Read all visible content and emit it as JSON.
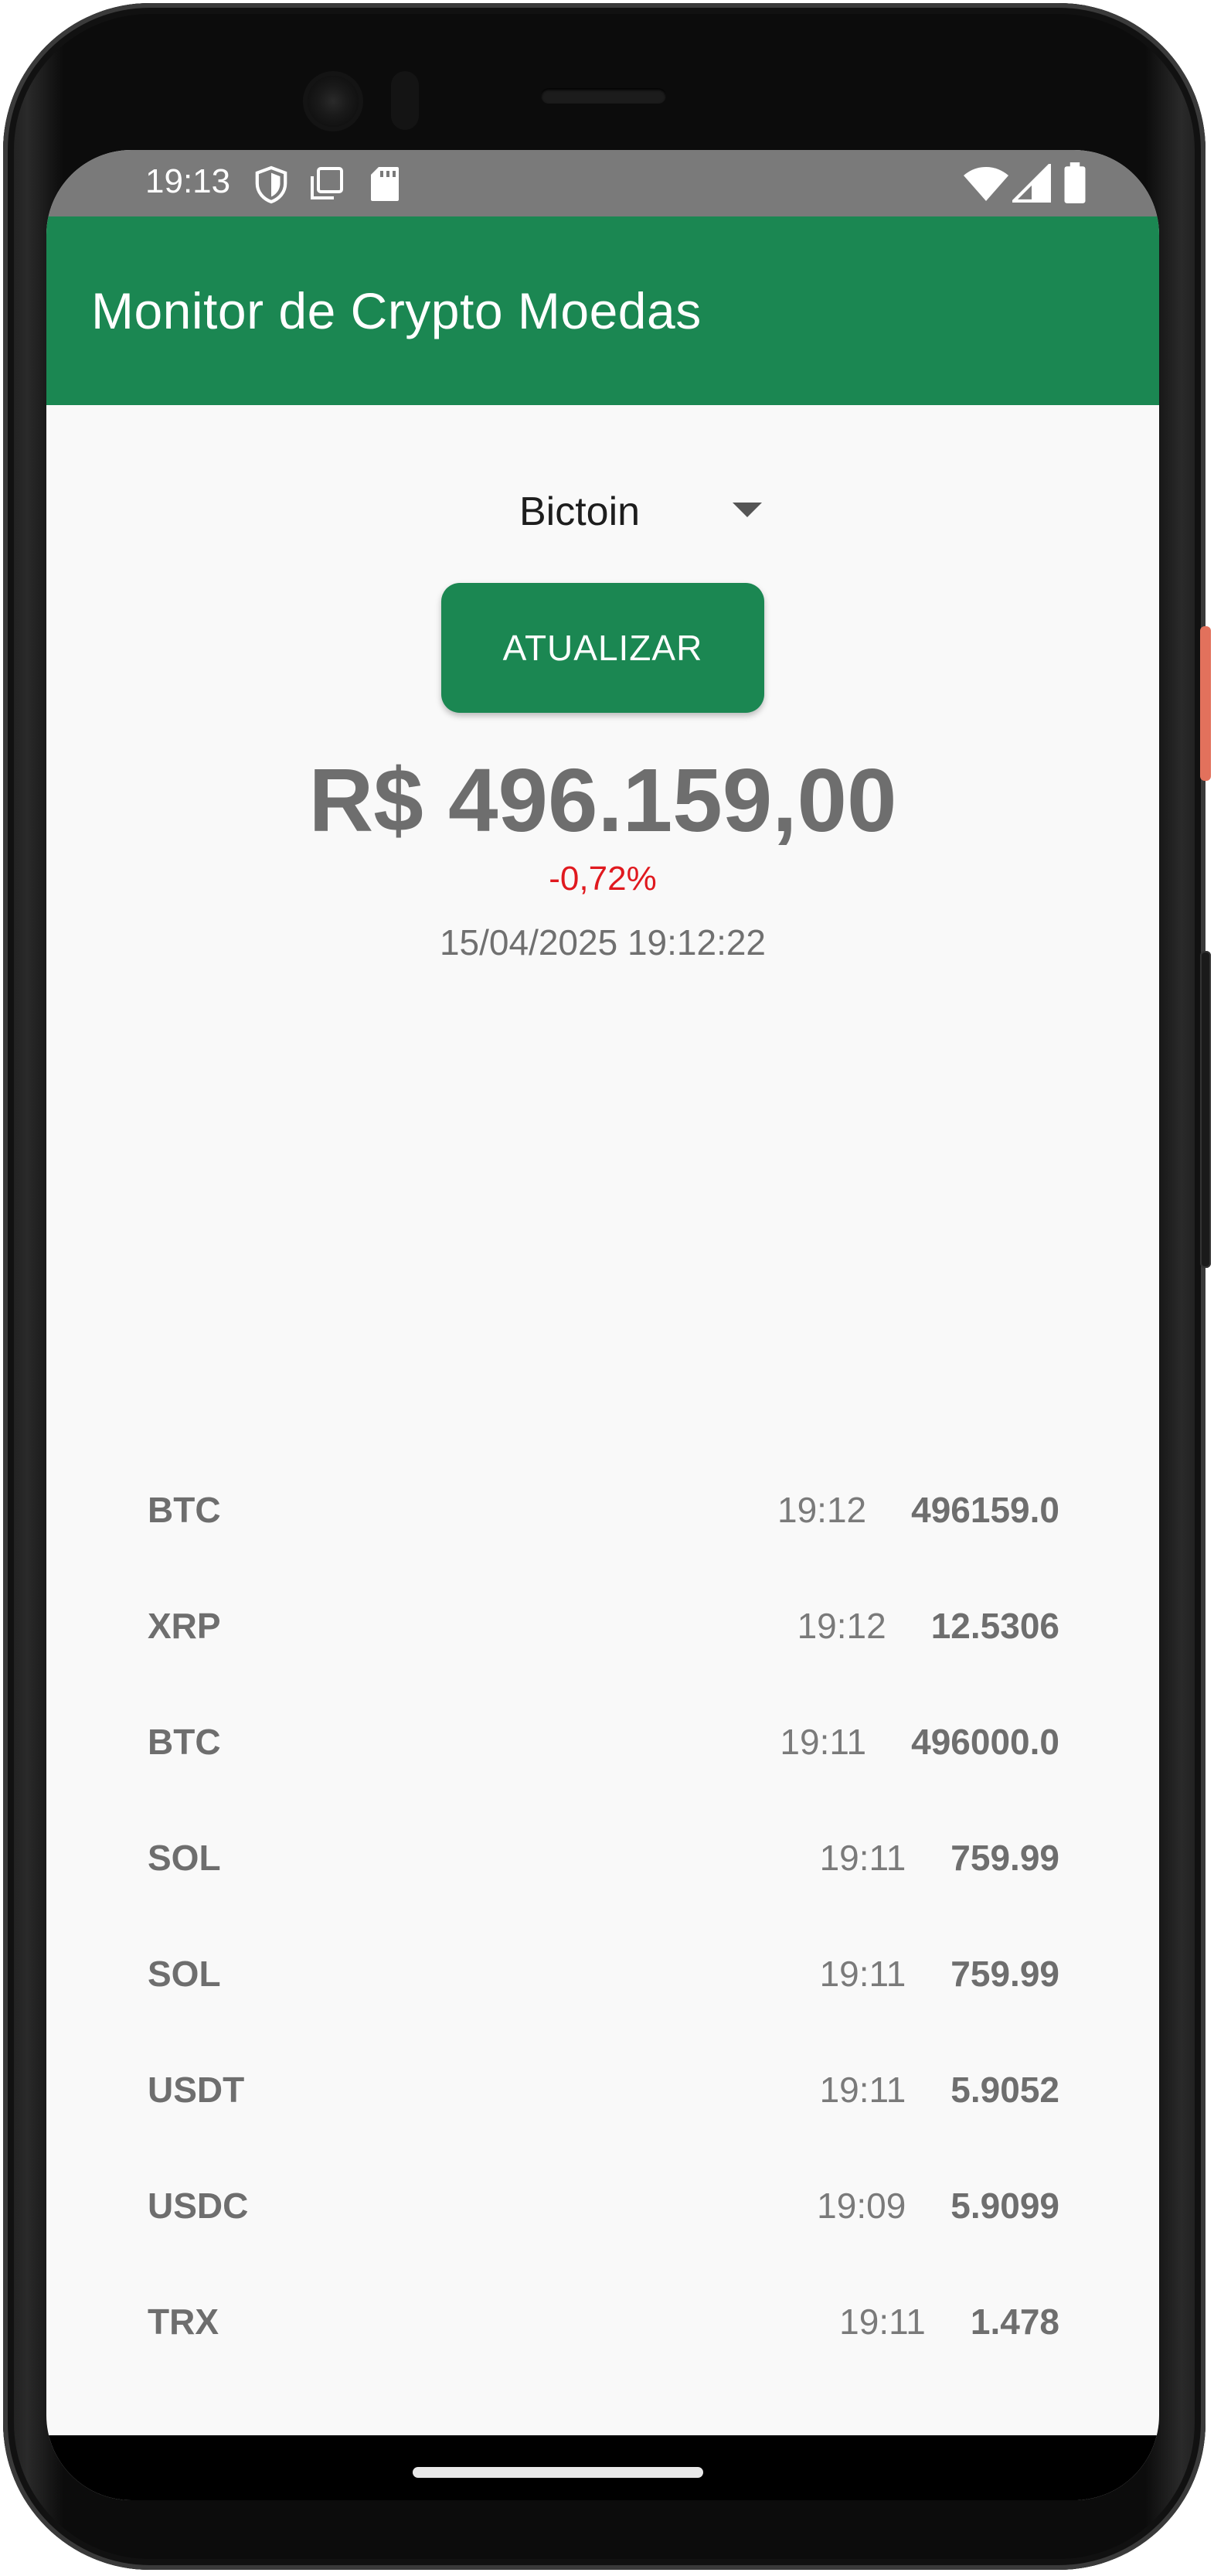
{
  "status_bar": {
    "time": "19:13",
    "left_icons": [
      "shield-icon",
      "screenshot-icon",
      "sd-card-icon"
    ],
    "right_icons": [
      "wifi-icon",
      "cellular-signal-icon",
      "battery-icon"
    ]
  },
  "app_bar": {
    "title": "Monitor de Crypto Moedas",
    "color": "#1b8752"
  },
  "selector": {
    "selected": "Bictoin"
  },
  "update_button": {
    "label": "ATUALIZAR"
  },
  "quote": {
    "price": "R$ 496.159,00",
    "change": "-0,72%",
    "change_color": "#e0191f",
    "timestamp": "15/04/2025 19:12:22"
  },
  "history": [
    {
      "symbol": "BTC",
      "time": "19:12",
      "value": "496159.0"
    },
    {
      "symbol": "XRP",
      "time": "19:12",
      "value": "12.5306"
    },
    {
      "symbol": "BTC",
      "time": "19:11",
      "value": "496000.0"
    },
    {
      "symbol": "SOL",
      "time": "19:11",
      "value": "759.99"
    },
    {
      "symbol": "SOL",
      "time": "19:11",
      "value": "759.99"
    },
    {
      "symbol": "USDT",
      "time": "19:11",
      "value": "5.9052"
    },
    {
      "symbol": "USDC",
      "time": "19:09",
      "value": "5.9099"
    },
    {
      "symbol": "TRX",
      "time": "19:11",
      "value": "1.478"
    }
  ]
}
